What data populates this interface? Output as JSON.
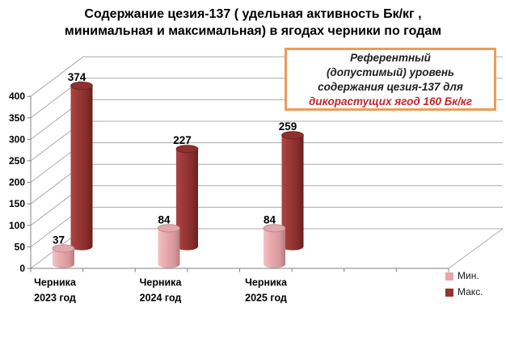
{
  "title": {
    "line1": "Содержание цезия-137 ( удельная активность Бк/кг ,",
    "line2": "минимальная и максимальная) в ягодах черники по годам"
  },
  "annotation": {
    "lines": [
      "Референтный",
      "(допустимый) уровень",
      "содержания цезия-137 для"
    ],
    "highlight_line": "дикорастущих ягод 160 Бк/кг",
    "reference_value_bq_per_kg": 160,
    "border_color": "#ec9c57",
    "highlight_color": "#c1272d"
  },
  "legend": {
    "position": "bottom-right",
    "items": [
      {
        "label": "Мин.",
        "color": "#e7a6a9"
      },
      {
        "label": "Макс.",
        "color": "#943531"
      }
    ]
  },
  "chart_data": {
    "type": "bar",
    "style": "3d-cylinder",
    "title": "Содержание цезия-137 ( удельная активность Бк/кг , минимальная и максимальная) в ягодах черники по годам",
    "categories": [
      "Черника 2023 год",
      "Черника 2024 год",
      "Черника 2025 год"
    ],
    "categories_lines": [
      [
        "Черника",
        "2023 год"
      ],
      [
        "Черника",
        "2024 год"
      ],
      [
        "Черника",
        "2025 год"
      ]
    ],
    "series": [
      {
        "name": "Мин.",
        "values": [
          37,
          84,
          84
        ],
        "color": "#e7a6a9"
      },
      {
        "name": "Макс.",
        "values": [
          374,
          227,
          259
        ],
        "color": "#943531"
      }
    ],
    "ylim": [
      0,
      400
    ],
    "ytick_step": 50,
    "ytick_labels": [
      "0",
      "50",
      "100",
      "150",
      "200",
      "250",
      "300",
      "350",
      "400"
    ],
    "grid": true,
    "value_labels": true,
    "legend_position": "bottom-right"
  },
  "colors": {
    "grid": "#b0a8a8",
    "axis": "#808080",
    "value_label_text": "#000000",
    "min_cylinder": "#e7a6a9",
    "max_cylinder": "#943531"
  }
}
